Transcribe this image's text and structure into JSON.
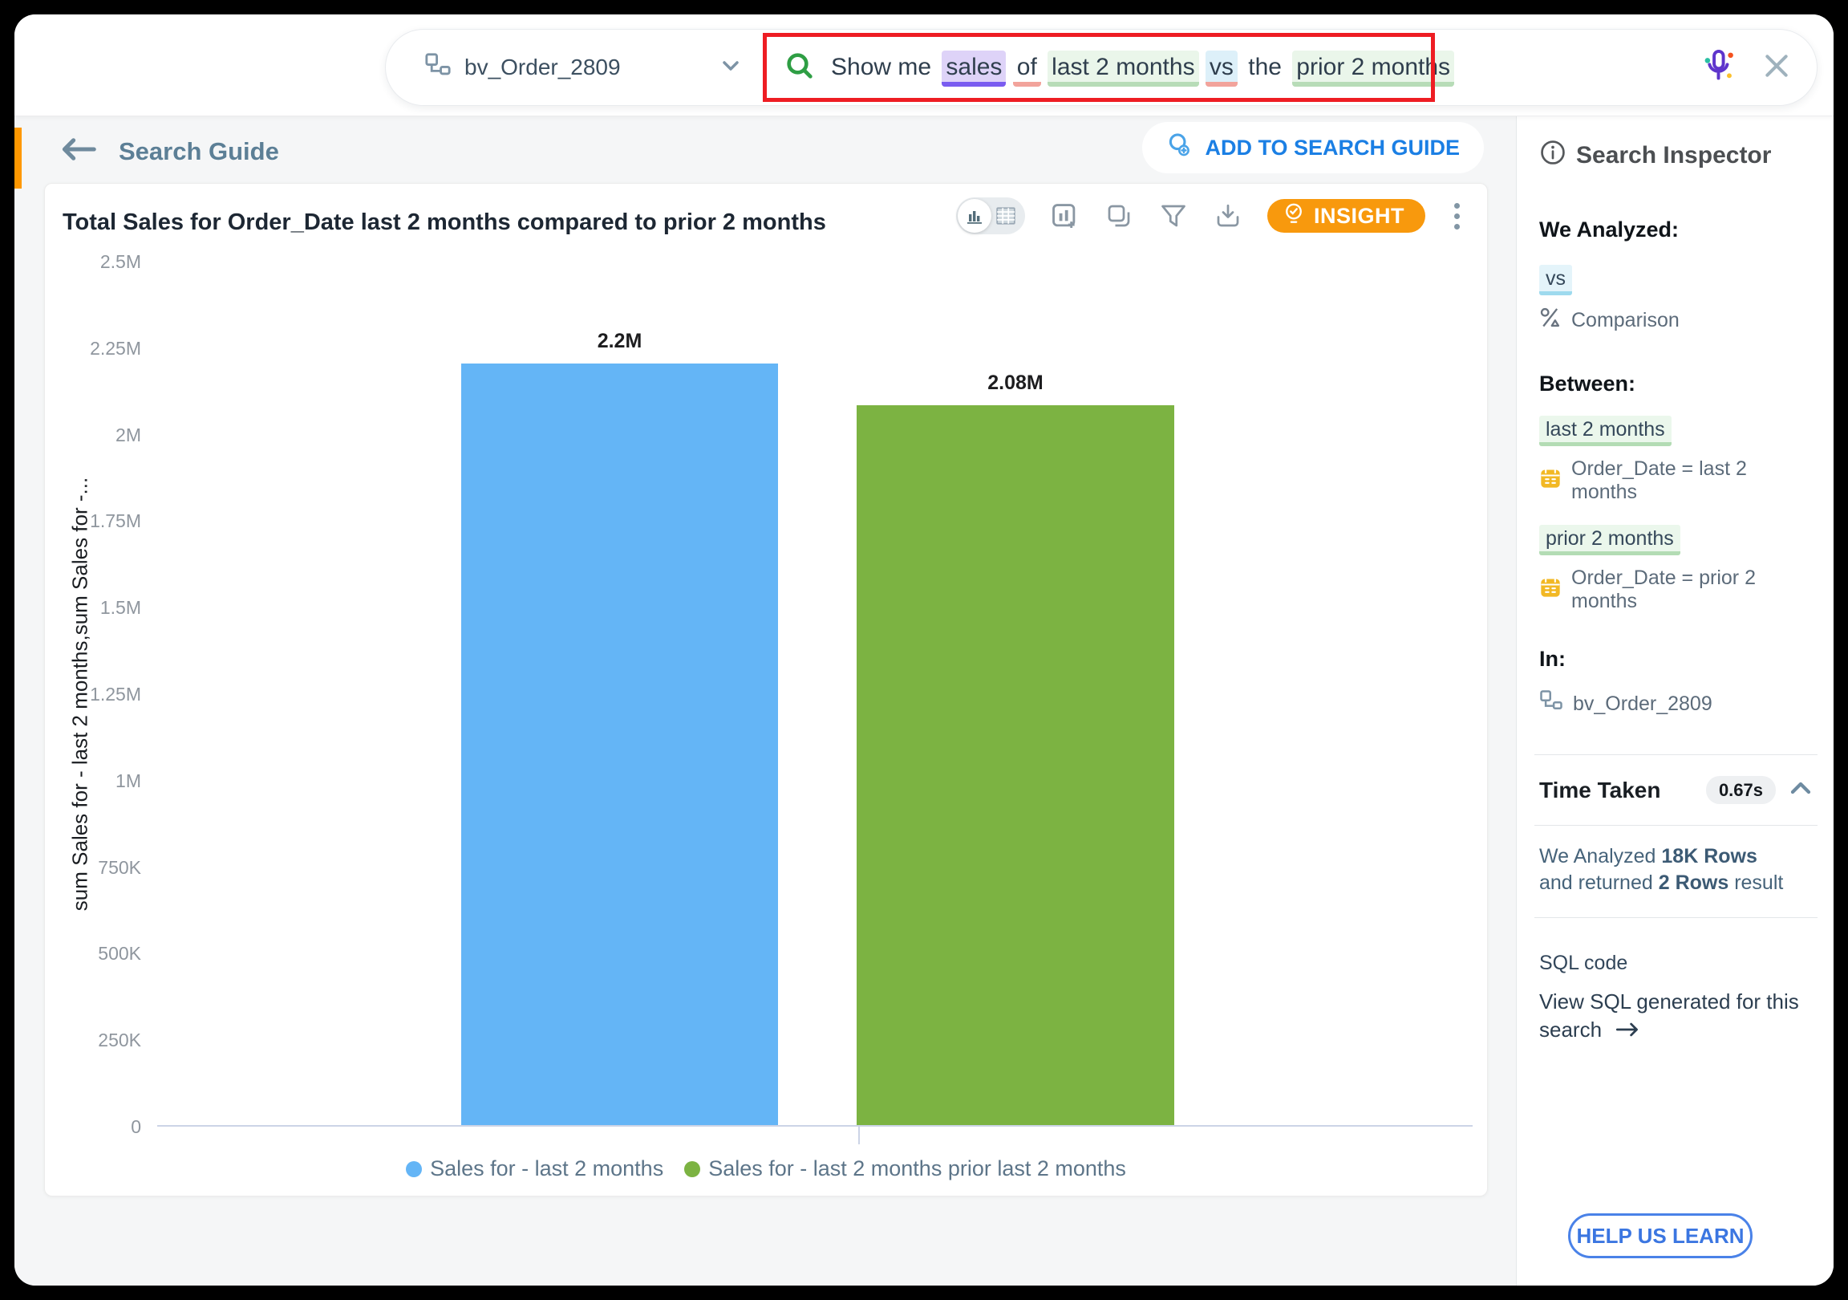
{
  "topbar": {
    "dataset": {
      "name": "bv_Order_2809"
    },
    "search": {
      "segments": [
        {
          "text": "Show me ",
          "kind": "plain"
        },
        {
          "text": "sales",
          "kind": "measure"
        },
        {
          "text": " ",
          "kind": "plain"
        },
        {
          "text": "of",
          "kind": "connector"
        },
        {
          "text": " ",
          "kind": "plain"
        },
        {
          "text": "last 2 months",
          "kind": "date"
        },
        {
          "text": " ",
          "kind": "plain"
        },
        {
          "text": "vs",
          "kind": "operator"
        },
        {
          "text": " the ",
          "kind": "plain"
        },
        {
          "text": "prior 2 months",
          "kind": "date"
        }
      ]
    }
  },
  "guide_bar": {
    "title": "Search Guide",
    "add_button": "ADD TO SEARCH GUIDE"
  },
  "card": {
    "title": "Total Sales for Order_Date last 2 months compared to prior 2 months",
    "insight_label": "INSIGHT"
  },
  "chart_data": {
    "type": "bar",
    "title": "Total Sales for Order_Date last 2 months compared to prior 2 months",
    "categories": [
      "Sales for - last 2 months",
      "Sales for - last 2 months prior last 2 months"
    ],
    "values": [
      2200000,
      2080000
    ],
    "value_labels": [
      "2.2M",
      "2.08M"
    ],
    "colors": [
      "#64b5f6",
      "#7cb342"
    ],
    "ylabel": "sum Sales for - last 2 months,sum Sales for -...",
    "xlabel": "",
    "ylim": [
      0,
      2500000
    ],
    "yticks": [
      0,
      250000,
      500000,
      750000,
      1000000,
      1250000,
      1500000,
      1750000,
      2000000,
      2250000,
      2500000
    ],
    "ytick_labels": [
      "0",
      "250K",
      "500K",
      "750K",
      "1M",
      "1.25M",
      "1.5M",
      "1.75M",
      "2M",
      "2.25M",
      "2.5M"
    ],
    "legend": [
      "Sales for - last 2 months",
      "Sales for - last 2 months prior last 2 months"
    ],
    "legend_position": "bottom",
    "grid": false
  },
  "inspector": {
    "title": "Search Inspector",
    "we_analyzed_label": "We Analyzed:",
    "vs_token": "vs",
    "comparison_label": "Comparison",
    "between_label": "Between:",
    "token_last": "last 2 months",
    "cond_last": "Order_Date = last 2 months",
    "token_prior": "prior 2 months",
    "cond_prior": "Order_Date = prior 2 months",
    "in_label": "In:",
    "dataset": "bv_Order_2809",
    "time_taken_label": "Time Taken",
    "time_taken_value": "0.67s",
    "rows_line1_prefix": "We Analyzed ",
    "rows_line1_bold": "18K Rows",
    "rows_line2_prefix": "and returned ",
    "rows_line2_bold": "2 Rows",
    "rows_line2_suffix": " result",
    "sql_label": "SQL code",
    "sql_link_line1": "View SQL generated for this",
    "sql_link_line2": "search",
    "help_button": "HELP US LEARN"
  }
}
